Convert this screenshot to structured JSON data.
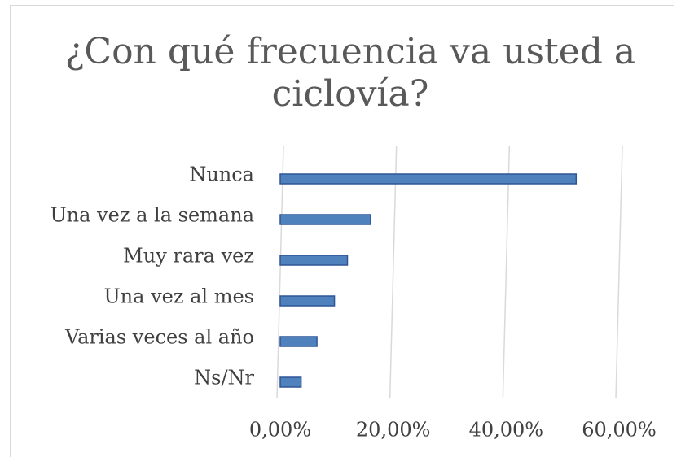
{
  "chart_data": {
    "type": "hbar",
    "title": "¿Con qué frecuencia va usted a ciclovía?",
    "categories": [
      "Nunca",
      "Una vez a la semana",
      "Muy rara vez",
      "Una vez al mes",
      "Varias veces al año",
      "Ns/Nr"
    ],
    "values": [
      52.4,
      16.0,
      11.9,
      9.6,
      6.5,
      3.7
    ],
    "color": "#4f81bd",
    "xlim": [
      0,
      60
    ],
    "xticks": [
      {
        "value": 0,
        "label": "0,00%"
      },
      {
        "value": 20,
        "label": "20,00%"
      },
      {
        "value": 40,
        "label": "40,00%"
      },
      {
        "value": 60,
        "label": "60,00%"
      }
    ],
    "grid": true
  }
}
